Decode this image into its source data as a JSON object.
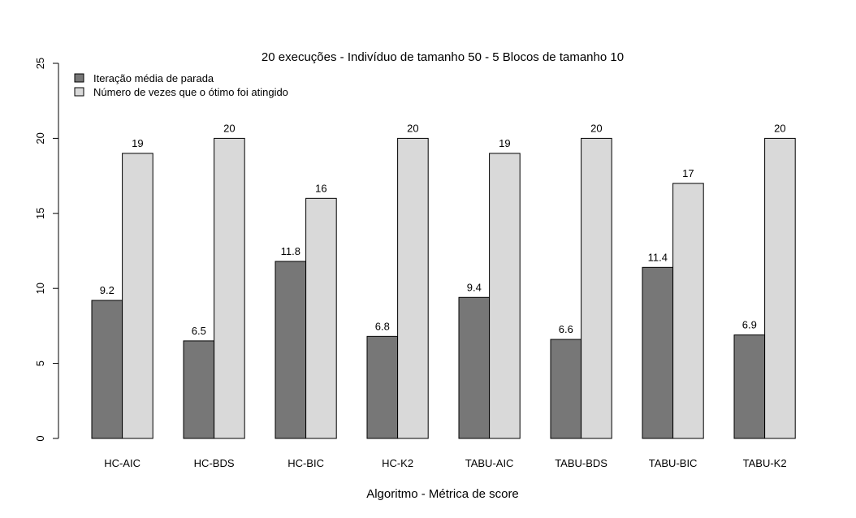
{
  "chart_data": {
    "type": "bar",
    "title": "20 execuções - Indivíduo de tamanho 50 - 5 Blocos de tamanho 10",
    "xlabel": "Algoritmo - Métrica de score",
    "ylabel": "",
    "ylim": [
      0,
      25
    ],
    "yticks": [
      "0",
      "5",
      "10",
      "15",
      "20",
      "25"
    ],
    "grid": false,
    "legend_position": "top-left",
    "categories": [
      "HC-AIC",
      "HC-BDS",
      "HC-BIC",
      "HC-K2",
      "TABU-AIC",
      "TABU-BDS",
      "TABU-BIC",
      "TABU-K2"
    ],
    "series": [
      {
        "name": "Iteração média de parada",
        "color": "#777777",
        "values": [
          9.2,
          6.5,
          11.8,
          6.8,
          9.4,
          6.6,
          11.4,
          6.9
        ],
        "labels": [
          "9.2",
          "6.5",
          "11.8",
          "6.8",
          "9.4",
          "6.6",
          "11.4",
          "6.9"
        ]
      },
      {
        "name": "Número de vezes que o ótimo foi atingido",
        "color": "#d9d9d9",
        "values": [
          19,
          20,
          16,
          20,
          19,
          20,
          17,
          20
        ],
        "labels": [
          "19",
          "20",
          "16",
          "20",
          "19",
          "20",
          "17",
          "20"
        ]
      }
    ]
  }
}
